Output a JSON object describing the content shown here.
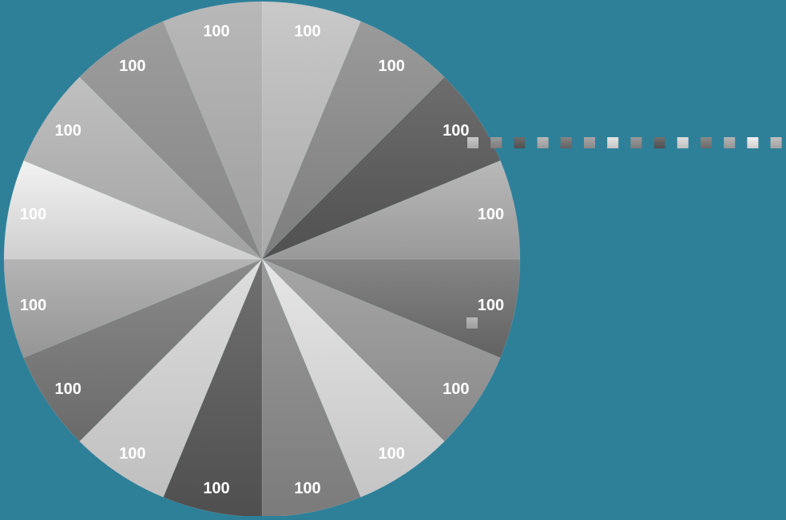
{
  "chart_data": {
    "type": "pie",
    "title": "",
    "categories": [
      "",
      "",
      "",
      "",
      "",
      "",
      "",
      "",
      "",
      "",
      "",
      "",
      "",
      "",
      "",
      ""
    ],
    "values": [
      100,
      100,
      100,
      100,
      100,
      100,
      100,
      100,
      100,
      100,
      100,
      100,
      100,
      100,
      100,
      100
    ],
    "data_labels": [
      "100",
      "100",
      "100",
      "100",
      "100",
      "100",
      "100",
      "100",
      "100",
      "100",
      "100",
      "100",
      "100",
      "100",
      "100",
      "100"
    ],
    "start_angle_deg": 0,
    "direction": "clockwise",
    "legend": "right",
    "colors": {
      "background": "#2e8099",
      "slices": [
        [
          "#c9c9c9",
          "#a9a9a9"
        ],
        [
          "#9a9a9a",
          "#7d7d7d"
        ],
        [
          "#6d6d6d",
          "#505050"
        ],
        [
          "#b9b9b9",
          "#999999"
        ],
        [
          "#858585",
          "#626262"
        ],
        [
          "#a6a6a6",
          "#888888"
        ],
        [
          "#e6e6e6",
          "#c5c5c5"
        ],
        [
          "#9a9a9a",
          "#7b7b7b"
        ],
        [
          "#707070",
          "#4f4f4f"
        ],
        [
          "#dedede",
          "#bfbfbf"
        ],
        [
          "#8a8a8a",
          "#6a6a6a"
        ],
        [
          "#b4b4b4",
          "#959595"
        ],
        [
          "#f2f2f2",
          "#cfcfcf"
        ],
        [
          "#c0c0c0",
          "#a2a2a2"
        ],
        [
          "#9d9d9d",
          "#858585"
        ],
        [
          "#b8b8b8",
          "#9e9e9e"
        ]
      ]
    }
  }
}
